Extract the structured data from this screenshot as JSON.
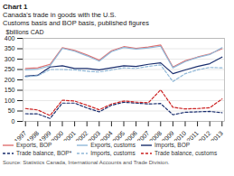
{
  "chart_data": {
    "type": "line",
    "title": "Chart 1",
    "subtitle": [
      "Canada's trade in goods with the U.S.",
      "Customs basis and BOP basis, published figures"
    ],
    "ylabel": "$billions CAD",
    "source": "Source: Statistics Canada, International Accounts and Trade Division.",
    "x": [
      1997,
      1998,
      1999,
      2000,
      2001,
      2002,
      2003,
      2004,
      2005,
      2006,
      2007,
      2008,
      2009,
      2010,
      2011,
      2012,
      2013
    ],
    "series": [
      {
        "name": "Exports, BOP",
        "color": "#e07070",
        "line_style": "solid",
        "values": [
          255,
          258,
          275,
          355,
          342,
          320,
          295,
          340,
          360,
          352,
          358,
          368,
          262,
          292,
          310,
          325,
          350
        ]
      },
      {
        "name": "Exports, customs",
        "color": "#90b8d8",
        "line_style": "solid",
        "values": [
          248,
          252,
          268,
          352,
          338,
          316,
          290,
          336,
          356,
          348,
          354,
          362,
          258,
          288,
          308,
          322,
          355
        ]
      },
      {
        "name": "Imports, BOP",
        "color": "#1a2e6e",
        "line_style": "solid",
        "values": [
          218,
          222,
          262,
          268,
          255,
          255,
          248,
          258,
          268,
          265,
          275,
          282,
          230,
          248,
          265,
          278,
          310
        ]
      },
      {
        "name": "Trade balance, BOP*",
        "color": "#1a2e6e",
        "line_style": "dashed",
        "values": [
          37,
          36,
          14,
          88,
          88,
          65,
          46,
          78,
          92,
          88,
          84,
          86,
          32,
          44,
          46,
          48,
          42
        ]
      },
      {
        "name": "Imports, customs",
        "color": "#90b8d8",
        "line_style": "dashed",
        "values": [
          215,
          220,
          250,
          250,
          248,
          242,
          238,
          248,
          258,
          255,
          265,
          272,
          192,
          230,
          248,
          260,
          258
        ]
      },
      {
        "name": "Trade balance, customs",
        "color": "#cc2222",
        "line_style": "dashed",
        "values": [
          62,
          55,
          28,
          102,
          98,
          78,
          56,
          84,
          98,
          93,
          90,
          152,
          68,
          60,
          62,
          66,
          108
        ]
      }
    ],
    "xlim": [
      1996.8,
      2013.2
    ],
    "xticks": [
      1997,
      1998,
      1999,
      2000,
      2001,
      2002,
      2003,
      2004,
      2005,
      2006,
      2007,
      2008,
      2009,
      2010,
      2011,
      2012,
      2013
    ],
    "ylim": [
      0,
      400
    ],
    "yticks": [
      0,
      50,
      100,
      150,
      200,
      250,
      300,
      350,
      400
    ],
    "grid": true,
    "legend": "bottom"
  }
}
